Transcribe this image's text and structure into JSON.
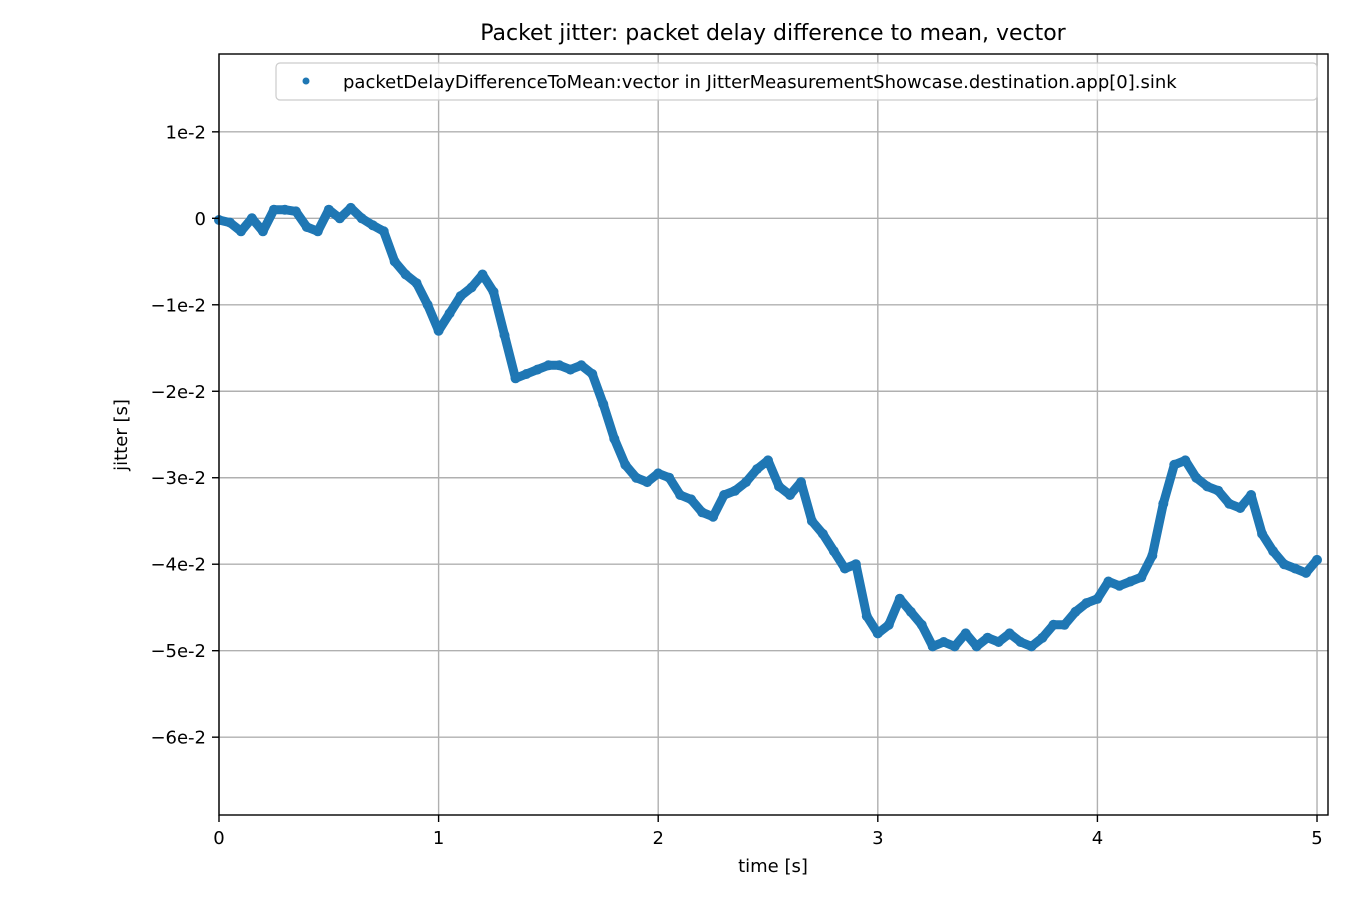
{
  "chart_data": {
    "type": "scatter",
    "title": "Packet jitter: packet delay difference to mean, vector",
    "xlabel": "time [s]",
    "ylabel": "jitter [s]",
    "xlim": [
      0,
      5.05
    ],
    "ylim": [
      -0.069,
      0.019
    ],
    "x_ticks": [
      {
        "value": 0,
        "label": "0"
      },
      {
        "value": 1,
        "label": "1"
      },
      {
        "value": 2,
        "label": "2"
      },
      {
        "value": 3,
        "label": "3"
      },
      {
        "value": 4,
        "label": "4"
      },
      {
        "value": 5,
        "label": "5"
      }
    ],
    "y_ticks": [
      {
        "value": 0.01,
        "label": "1e-2"
      },
      {
        "value": 0,
        "label": "0"
      },
      {
        "value": -0.01,
        "label": "−1e-2"
      },
      {
        "value": -0.02,
        "label": "−2e-2"
      },
      {
        "value": -0.03,
        "label": "−3e-2"
      },
      {
        "value": -0.04,
        "label": "−4e-2"
      },
      {
        "value": -0.05,
        "label": "−5e-2"
      },
      {
        "value": -0.06,
        "label": "−6e-2"
      }
    ],
    "grid": true,
    "legend": {
      "position": "top-right",
      "marker": "dot"
    },
    "series": [
      {
        "name": "packetDelayDifferenceToMean:vector in JitterMeasurementShowcase.destination.app[0].sink",
        "color": "#1f77b4",
        "marker": "dot",
        "points": [
          [
            0.0,
            -0.0002
          ],
          [
            0.05,
            -0.0005
          ],
          [
            0.1,
            -0.0015
          ],
          [
            0.15,
            0.0
          ],
          [
            0.2,
            -0.0015
          ],
          [
            0.25,
            0.001
          ],
          [
            0.3,
            0.001
          ],
          [
            0.35,
            0.0008
          ],
          [
            0.4,
            -0.001
          ],
          [
            0.45,
            -0.0015
          ],
          [
            0.5,
            0.001
          ],
          [
            0.55,
            0.0
          ],
          [
            0.6,
            0.0012
          ],
          [
            0.65,
            0.0
          ],
          [
            0.7,
            -0.0008
          ],
          [
            0.75,
            -0.0015
          ],
          [
            0.8,
            -0.005
          ],
          [
            0.85,
            -0.0065
          ],
          [
            0.9,
            -0.0075
          ],
          [
            0.95,
            -0.01
          ],
          [
            1.0,
            -0.013
          ],
          [
            1.05,
            -0.011
          ],
          [
            1.1,
            -0.009
          ],
          [
            1.15,
            -0.008
          ],
          [
            1.2,
            -0.0065
          ],
          [
            1.25,
            -0.0085
          ],
          [
            1.3,
            -0.0135
          ],
          [
            1.35,
            -0.0185
          ],
          [
            1.4,
            -0.018
          ],
          [
            1.45,
            -0.0175
          ],
          [
            1.5,
            -0.017
          ],
          [
            1.55,
            -0.017
          ],
          [
            1.6,
            -0.0175
          ],
          [
            1.65,
            -0.017
          ],
          [
            1.7,
            -0.018
          ],
          [
            1.75,
            -0.0215
          ],
          [
            1.8,
            -0.0255
          ],
          [
            1.85,
            -0.0285
          ],
          [
            1.9,
            -0.03
          ],
          [
            1.95,
            -0.0305
          ],
          [
            2.0,
            -0.0295
          ],
          [
            2.05,
            -0.03
          ],
          [
            2.1,
            -0.032
          ],
          [
            2.15,
            -0.0325
          ],
          [
            2.2,
            -0.034
          ],
          [
            2.25,
            -0.0345
          ],
          [
            2.3,
            -0.032
          ],
          [
            2.35,
            -0.0315
          ],
          [
            2.4,
            -0.0305
          ],
          [
            2.45,
            -0.029
          ],
          [
            2.5,
            -0.028
          ],
          [
            2.55,
            -0.031
          ],
          [
            2.6,
            -0.032
          ],
          [
            2.65,
            -0.0305
          ],
          [
            2.7,
            -0.035
          ],
          [
            2.75,
            -0.0365
          ],
          [
            2.8,
            -0.0385
          ],
          [
            2.85,
            -0.0405
          ],
          [
            2.9,
            -0.04
          ],
          [
            2.95,
            -0.046
          ],
          [
            3.0,
            -0.048
          ],
          [
            3.05,
            -0.047
          ],
          [
            3.1,
            -0.044
          ],
          [
            3.15,
            -0.0455
          ],
          [
            3.2,
            -0.047
          ],
          [
            3.25,
            -0.0495
          ],
          [
            3.3,
            -0.049
          ],
          [
            3.35,
            -0.0495
          ],
          [
            3.4,
            -0.048
          ],
          [
            3.45,
            -0.0495
          ],
          [
            3.5,
            -0.0485
          ],
          [
            3.55,
            -0.049
          ],
          [
            3.6,
            -0.048
          ],
          [
            3.65,
            -0.049
          ],
          [
            3.7,
            -0.0495
          ],
          [
            3.75,
            -0.0485
          ],
          [
            3.8,
            -0.047
          ],
          [
            3.85,
            -0.047
          ],
          [
            3.9,
            -0.0455
          ],
          [
            3.95,
            -0.0445
          ],
          [
            4.0,
            -0.044
          ],
          [
            4.05,
            -0.042
          ],
          [
            4.1,
            -0.0425
          ],
          [
            4.15,
            -0.042
          ],
          [
            4.2,
            -0.0415
          ],
          [
            4.25,
            -0.039
          ],
          [
            4.3,
            -0.033
          ],
          [
            4.35,
            -0.0285
          ],
          [
            4.4,
            -0.028
          ],
          [
            4.45,
            -0.03
          ],
          [
            4.5,
            -0.031
          ],
          [
            4.55,
            -0.0315
          ],
          [
            4.6,
            -0.033
          ],
          [
            4.65,
            -0.0335
          ],
          [
            4.7,
            -0.032
          ],
          [
            4.75,
            -0.0365
          ],
          [
            4.8,
            -0.0385
          ],
          [
            4.85,
            -0.04
          ],
          [
            4.9,
            -0.0405
          ],
          [
            4.95,
            -0.041
          ],
          [
            5.0,
            -0.0395
          ]
        ]
      }
    ]
  }
}
